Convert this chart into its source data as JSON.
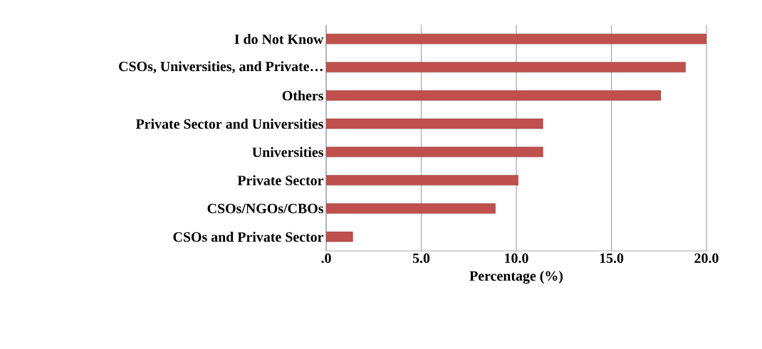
{
  "chart_data": {
    "type": "bar",
    "orientation": "horizontal",
    "xlabel": "Percentage (%)",
    "categories": [
      "I do Not Know",
      "CSOs, Universities, and Private…",
      "Others",
      "Private Sector and Universities",
      "Universities",
      "Private Sector",
      "CSOs/NGOs/CBOs",
      "CSOs and Private Sector"
    ],
    "values": [
      20.0,
      18.9,
      17.6,
      11.4,
      11.4,
      10.1,
      8.9,
      1.4
    ],
    "color": "#c0504d",
    "xlim": [
      0,
      20
    ],
    "xticks": [
      {
        "value": 0,
        "label": ".0"
      },
      {
        "value": 5,
        "label": "5.0"
      },
      {
        "value": 10,
        "label": "10.0"
      },
      {
        "value": 15,
        "label": "15.0"
      },
      {
        "value": 20,
        "label": "20.0"
      }
    ],
    "grid": "x"
  }
}
